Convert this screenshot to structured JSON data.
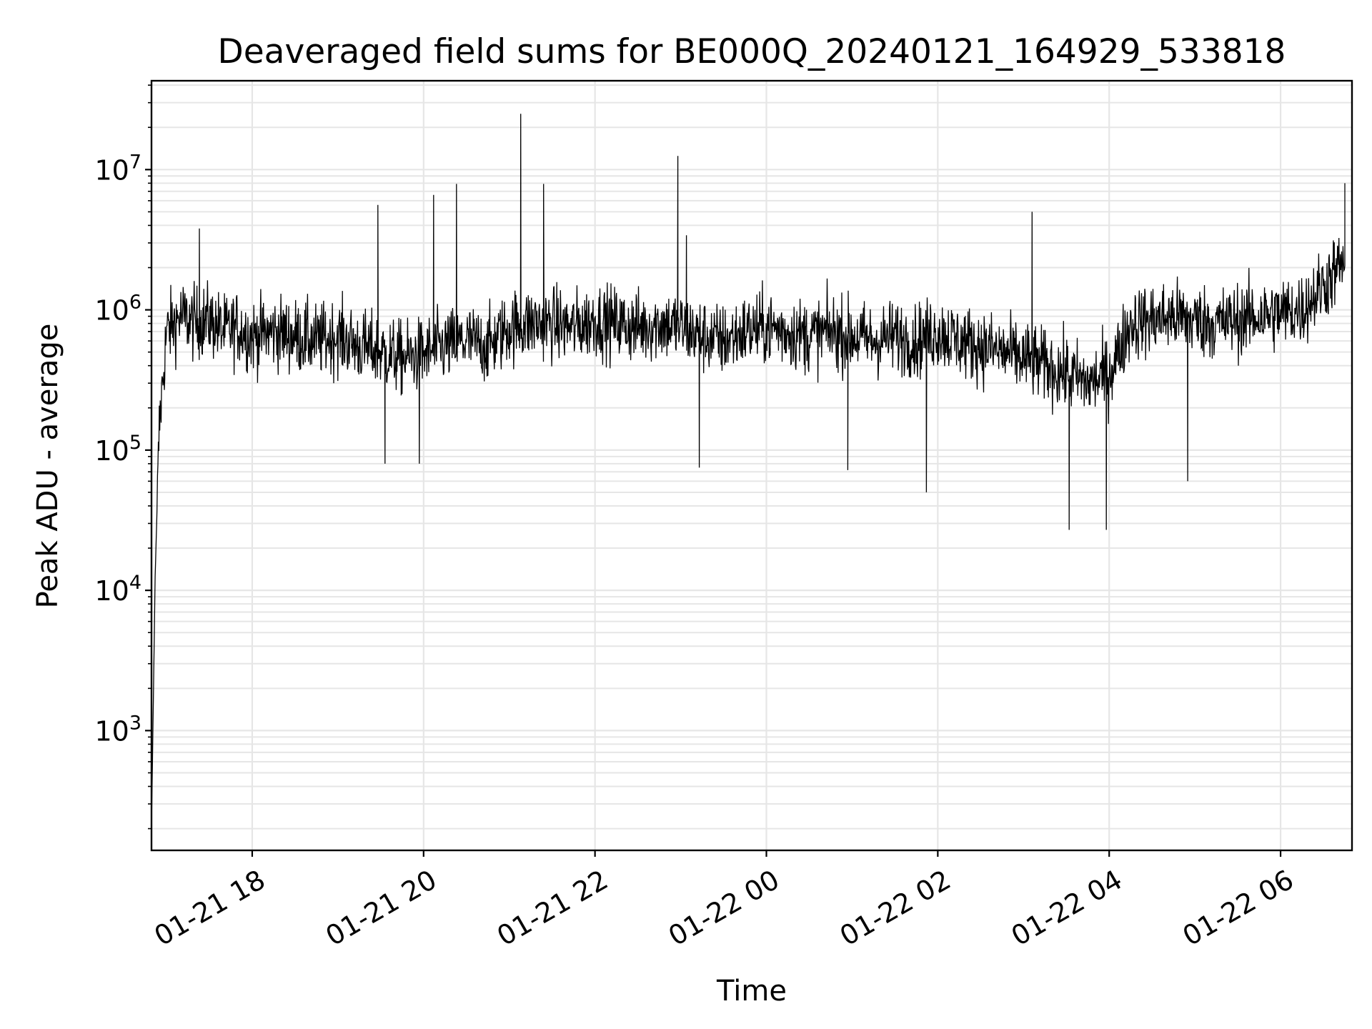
{
  "chart_data": {
    "type": "line",
    "title": "Deaveraged field sums for BE000Q_20240121_164929_533818",
    "xlabel": "Time",
    "ylabel": "Peak ADU - average",
    "x_scale": "time",
    "y_scale": "log",
    "xlim": [
      "2024-01-21 16:49:29",
      "2024-01-22 06:50:00"
    ],
    "ylim": [
      140,
      43000000
    ],
    "grid": true,
    "legend": "none",
    "line_color": "#000000",
    "grid_color": "#e6e6e6",
    "x_ticks": [
      {
        "value": "2024-01-21 18:00",
        "label": "01-21 18"
      },
      {
        "value": "2024-01-21 20:00",
        "label": "01-21 20"
      },
      {
        "value": "2024-01-21 22:00",
        "label": "01-21 22"
      },
      {
        "value": "2024-01-22 00:00",
        "label": "01-22 00"
      },
      {
        "value": "2024-01-22 02:00",
        "label": "01-22 02"
      },
      {
        "value": "2024-01-22 04:00",
        "label": "01-22 04"
      },
      {
        "value": "2024-01-22 06:00",
        "label": "01-22 06"
      }
    ],
    "y_ticks": [
      {
        "value": 1000,
        "base": "10",
        "exp": "3"
      },
      {
        "value": 10000,
        "base": "10",
        "exp": "4"
      },
      {
        "value": 100000,
        "base": "10",
        "exp": "5"
      },
      {
        "value": 1000000,
        "base": "10",
        "exp": "6"
      },
      {
        "value": 10000000,
        "base": "10",
        "exp": "7"
      }
    ],
    "series": [
      {
        "x": [
          "2024-01-21 16:49:29",
          "2024-01-21 16:52",
          "2024-01-21 16:55",
          "2024-01-21 17:00",
          "2024-01-21 17:10",
          "2024-01-21 17:20",
          "2024-01-21 17:30",
          "2024-01-21 17:40",
          "2024-01-21 17:50",
          "2024-01-21 18:00",
          "2024-01-21 18:15",
          "2024-01-21 18:30",
          "2024-01-21 18:45",
          "2024-01-21 19:00",
          "2024-01-21 19:15",
          "2024-01-21 19:30",
          "2024-01-21 19:45",
          "2024-01-21 20:00",
          "2024-01-21 20:15",
          "2024-01-21 20:30",
          "2024-01-21 20:45",
          "2024-01-21 21:00",
          "2024-01-21 21:15",
          "2024-01-21 21:30",
          "2024-01-21 21:45",
          "2024-01-21 22:00",
          "2024-01-21 22:15",
          "2024-01-21 22:30",
          "2024-01-21 22:45",
          "2024-01-21 23:00",
          "2024-01-21 23:15",
          "2024-01-21 23:30",
          "2024-01-21 23:45",
          "2024-01-22 00:00",
          "2024-01-22 00:15",
          "2024-01-22 00:30",
          "2024-01-22 00:45",
          "2024-01-22 01:00",
          "2024-01-22 01:15",
          "2024-01-22 01:30",
          "2024-01-22 01:45",
          "2024-01-22 02:00",
          "2024-01-22 02:15",
          "2024-01-22 02:30",
          "2024-01-22 02:45",
          "2024-01-22 03:00",
          "2024-01-22 03:15",
          "2024-01-22 03:30",
          "2024-01-22 03:45",
          "2024-01-22 04:00",
          "2024-01-22 04:15",
          "2024-01-22 04:30",
          "2024-01-22 04:45",
          "2024-01-22 05:00",
          "2024-01-22 05:15",
          "2024-01-22 05:30",
          "2024-01-22 05:45",
          "2024-01-22 06:00",
          "2024-01-22 06:15",
          "2024-01-22 06:30",
          "2024-01-22 06:45"
        ],
        "y": [
          200,
          12000,
          150000,
          700000,
          900000,
          800000,
          850000,
          700000,
          750000,
          650000,
          700000,
          650000,
          600000,
          650000,
          550000,
          500000,
          450000,
          480000,
          550000,
          600000,
          550000,
          750000,
          800000,
          800000,
          750000,
          850000,
          800000,
          750000,
          800000,
          750000,
          650000,
          600000,
          700000,
          750000,
          700000,
          650000,
          700000,
          650000,
          600000,
          650000,
          600000,
          700000,
          600000,
          550000,
          500000,
          450000,
          400000,
          350000,
          300000,
          350000,
          800000,
          850000,
          900000,
          850000,
          800000,
          850000,
          900000,
          950000,
          1000000,
          1500000,
          2200000
        ],
        "peaks": [
          {
            "x": "2024-01-21 17:23",
            "y": 3800000
          },
          {
            "x": "2024-01-21 19:28",
            "y": 5600000
          },
          {
            "x": "2024-01-21 20:07",
            "y": 6600000
          },
          {
            "x": "2024-01-21 20:23",
            "y": 7900000
          },
          {
            "x": "2024-01-21 21:08",
            "y": 25000000
          },
          {
            "x": "2024-01-21 21:24",
            "y": 7900000
          },
          {
            "x": "2024-01-21 22:58",
            "y": 12500000
          },
          {
            "x": "2024-01-21 23:04",
            "y": 3400000
          },
          {
            "x": "2024-01-22 03:06",
            "y": 5000000
          },
          {
            "x": "2024-01-22 06:45",
            "y": 8000000
          }
        ],
        "dips": [
          {
            "x": "2024-01-21 19:33",
            "y": 80000
          },
          {
            "x": "2024-01-21 19:57",
            "y": 80000
          },
          {
            "x": "2024-01-21 23:13",
            "y": 75000
          },
          {
            "x": "2024-01-22 00:57",
            "y": 72000
          },
          {
            "x": "2024-01-22 01:52",
            "y": 50000
          },
          {
            "x": "2024-01-22 03:32",
            "y": 27000
          },
          {
            "x": "2024-01-22 03:58",
            "y": 27000
          },
          {
            "x": "2024-01-22 04:55",
            "y": 60000
          }
        ]
      }
    ]
  }
}
